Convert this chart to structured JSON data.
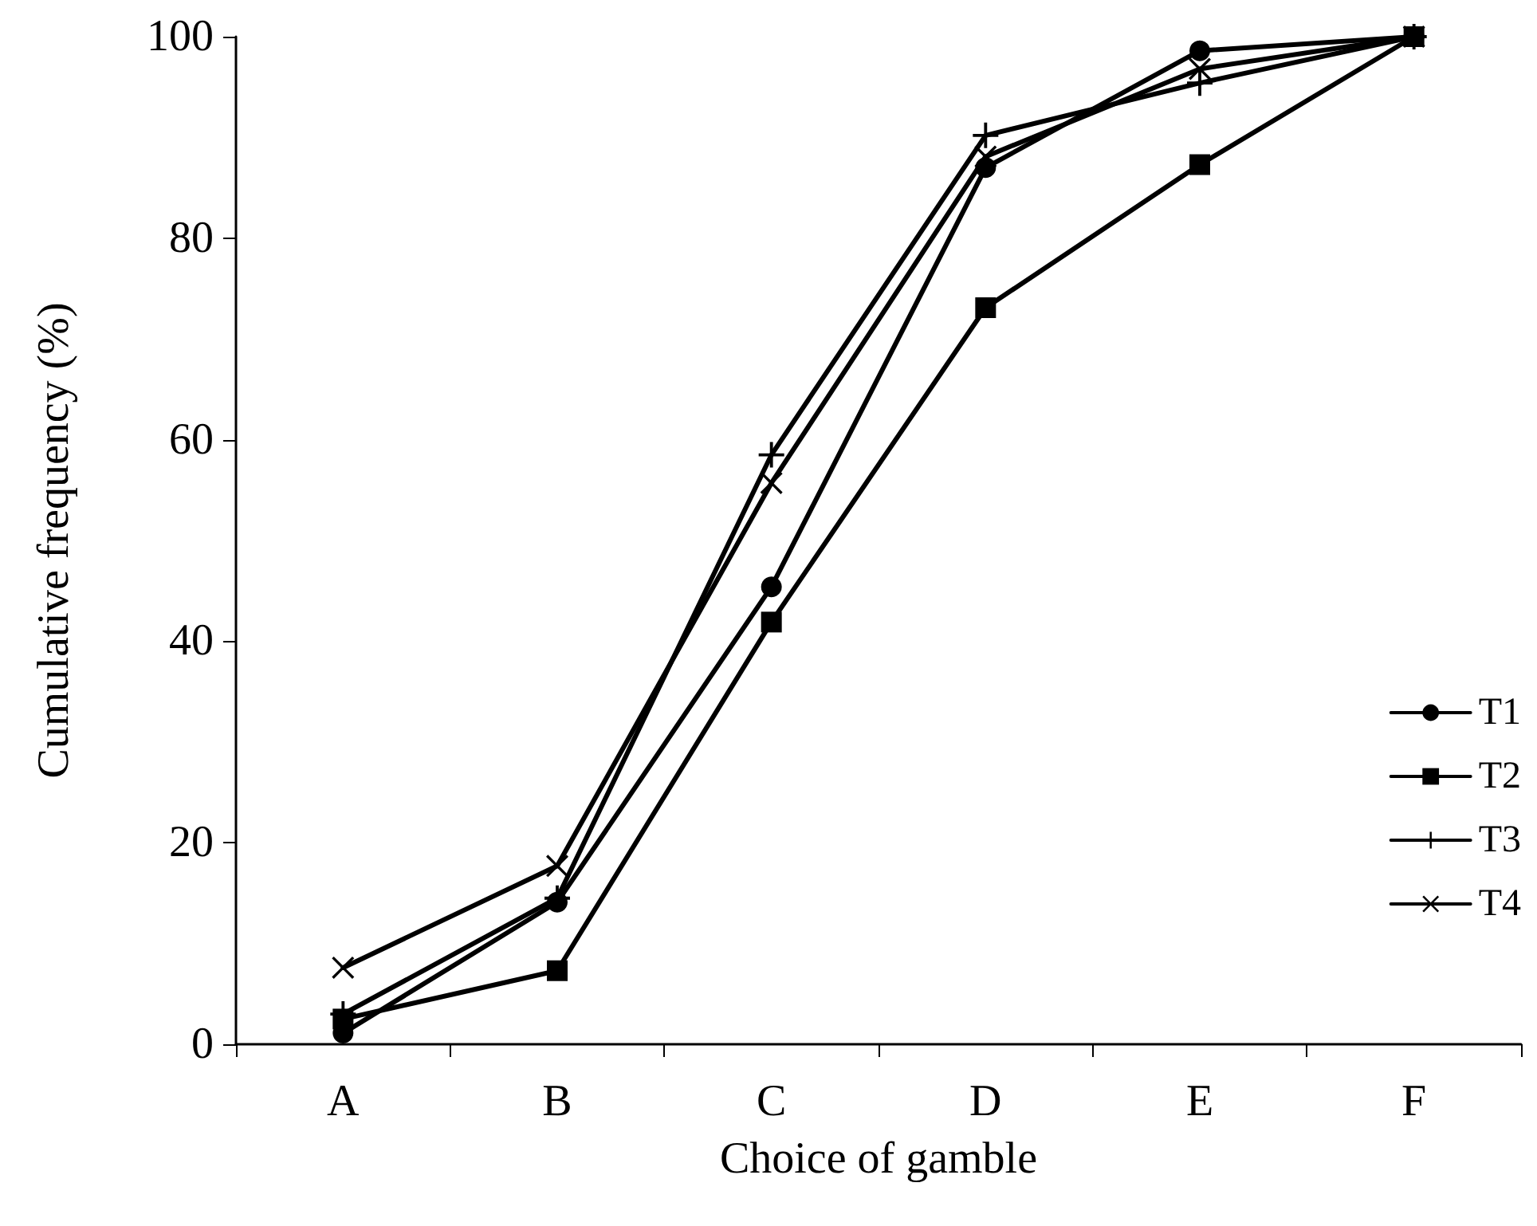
{
  "chart_data": {
    "type": "line",
    "xlabel": "Choice of gamble",
    "ylabel": "Cumulative frequency (%)",
    "categories": [
      "A",
      "B",
      "C",
      "D",
      "E",
      "F"
    ],
    "series": [
      {
        "name": "T1",
        "color": "#000000",
        "marker": "circle",
        "values": [
          1.1,
          14.1,
          45.4,
          87.0,
          98.6,
          100
        ]
      },
      {
        "name": "T2",
        "color": "#000000",
        "marker": "square",
        "values": [
          2.5,
          7.3,
          41.9,
          73.1,
          87.3,
          100
        ]
      },
      {
        "name": "T3",
        "color": "#000000",
        "marker": "plus",
        "values": [
          3.0,
          14.5,
          58.5,
          90.2,
          95.4,
          100
        ]
      },
      {
        "name": "T4",
        "color": "#000000",
        "marker": "cross",
        "values": [
          7.6,
          17.7,
          55.7,
          88.1,
          96.8,
          100
        ]
      }
    ],
    "ylim": [
      0,
      100
    ],
    "yticks": [
      0,
      20,
      40,
      60,
      80,
      100
    ],
    "grid": false,
    "legend": "right",
    "line_style": "solid"
  }
}
